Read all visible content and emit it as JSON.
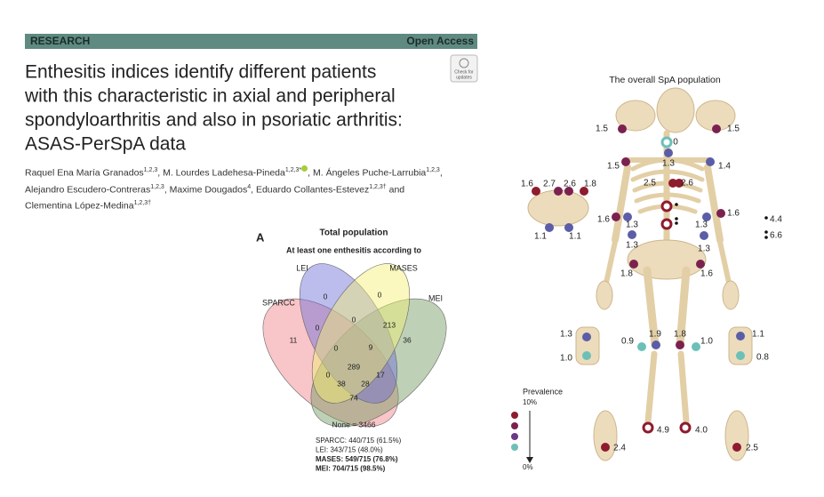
{
  "header": {
    "section": "RESEARCH",
    "access": "Open Access",
    "badge": [
      "Check for",
      "updates"
    ]
  },
  "title_lines": [
    "Enthesitis indices identify different patients",
    "with this characteristic in axial and peripheral",
    "spondyloarthritis and also in psoriatic arthritis:",
    "ASAS-PerSpA data"
  ],
  "authors": [
    {
      "name": "Raquel Ena María Granados",
      "sup": "1,2,3",
      "sep": ", "
    },
    {
      "name": "M. Lourdes Ladehesa-Pineda",
      "sup": "1,2,3*",
      "sep": ", "
    },
    {
      "name": "M. Ángeles Puche-Larrubia",
      "sup": "1,2,3",
      "sep": ", "
    },
    {
      "name": "Alejandro Escudero-Contreras",
      "sup": "1,2,3",
      "sep": ", "
    },
    {
      "name": "Maxime Dougados",
      "sup": "4",
      "sep": ", "
    },
    {
      "name": "Eduardo Collantes-Estevez",
      "sup": "1,2,3†",
      "sep": " and "
    },
    {
      "name": "Clementina López-Medina",
      "sup": "1,2,3†"
    }
  ],
  "venn": {
    "panel": "A",
    "title": "Total population",
    "subtitle": "At least one enthesitis according to",
    "sets": [
      "SPARCC",
      "LEI",
      "MASES",
      "MEI"
    ],
    "regions": [
      11,
      0,
      0,
      36,
      0,
      0,
      213,
      0,
      9,
      289,
      0,
      17,
      38,
      28,
      74
    ],
    "none": "None = 3466",
    "stats": [
      "SPARCC: 440/715 (61.5%)",
      "LEI: 343/715 (48.0%)",
      "MASES: 549/715 (76.8%)",
      "MEI: 704/715 (98.5%)"
    ]
  },
  "skeleton": {
    "title": "The overall SpA population",
    "sites": [
      {
        "label": "1.5",
        "color": "#7b2150"
      },
      {
        "label": "1.5",
        "color": "#7b2150"
      },
      {
        "label": "0",
        "color": "#6cc0b8"
      },
      {
        "label": "1.5",
        "color": "#7b2150"
      },
      {
        "label": "1.3",
        "color": "#5b5ea6"
      },
      {
        "label": "1.4",
        "color": "#5b5ea6"
      },
      {
        "label": "2.5",
        "color": "#8e1b2e"
      },
      {
        "label": "2.6",
        "color": "#8e1b2e"
      },
      {
        "label": "1.6",
        "color": "#8e1b2e"
      },
      {
        "label": "2.7",
        "color": "#7b2150"
      },
      {
        "label": "2.6",
        "color": "#7b2150"
      },
      {
        "label": "1.8",
        "color": "#8e1b2e"
      },
      {
        "label": "1.1",
        "color": "#5b5ea6"
      },
      {
        "label": "1.1",
        "color": "#5b5ea6"
      },
      {
        "label": "4.4",
        "color": "#8e1b2e"
      },
      {
        "label": "1.6",
        "color": "#7b2150"
      },
      {
        "label": "1.3",
        "color": "#5b5ea6"
      },
      {
        "label": "1.3",
        "color": "#5b5ea6"
      },
      {
        "label": "1.6",
        "color": "#7b2150"
      },
      {
        "label": "6.6",
        "color": "#8e1b2e"
      },
      {
        "label": "1.3",
        "color": "#5b5ea6"
      },
      {
        "label": "1.3",
        "color": "#5b5ea6"
      },
      {
        "label": "1.8",
        "color": "#7b2150"
      },
      {
        "label": "1.6",
        "color": "#7b2150"
      },
      {
        "label": "1.3",
        "color": "#5b5ea6"
      },
      {
        "label": "1.0",
        "color": "#6cc0b8"
      },
      {
        "label": "0.9",
        "color": "#6cc0b8"
      },
      {
        "label": "1.9",
        "color": "#5b5ea6"
      },
      {
        "label": "1.8",
        "color": "#7b2150"
      },
      {
        "label": "1.0",
        "color": "#6cc0b8"
      },
      {
        "label": "1.1",
        "color": "#5b5ea6"
      },
      {
        "label": "0.8",
        "color": "#6cc0b8"
      },
      {
        "label": "4.9",
        "color": "#8e1b2e"
      },
      {
        "label": "4.0",
        "color": "#8e1b2e"
      },
      {
        "label": "2.4",
        "color": "#8e1b2e"
      },
      {
        "label": "2.5",
        "color": "#8e1b2e"
      }
    ],
    "legend": {
      "title": "Prevalence",
      "top": "10%",
      "bottom": "0%",
      "colors": [
        "#8e1b2e",
        "#7b2150",
        "#6a3788",
        "#6cc0b8"
      ]
    }
  }
}
